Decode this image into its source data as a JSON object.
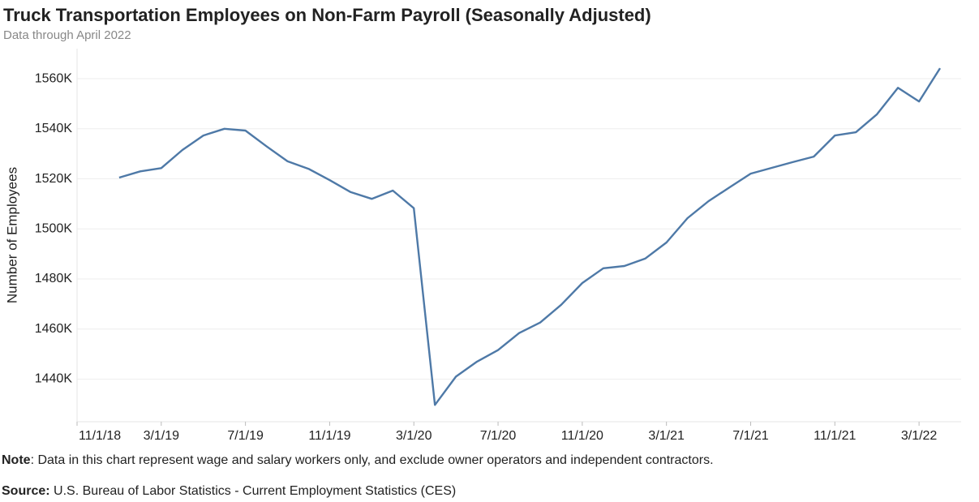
{
  "chart_data": {
    "type": "line",
    "title": "Truck Transportation Employees on Non-Farm Payroll (Seasonally Adjusted)",
    "subtitle": "Data through April 2022",
    "y_label": "Number of Employees",
    "x": [
      "1/1/19",
      "2/1/19",
      "3/1/19",
      "4/1/19",
      "5/1/19",
      "6/1/19",
      "7/1/19",
      "8/1/19",
      "9/1/19",
      "10/1/19",
      "11/1/19",
      "12/1/19",
      "1/1/20",
      "2/1/20",
      "3/1/20",
      "4/1/20",
      "5/1/20",
      "6/1/20",
      "7/1/20",
      "8/1/20",
      "9/1/20",
      "10/1/20",
      "11/1/20",
      "12/1/20",
      "1/1/21",
      "2/1/21",
      "3/1/21",
      "4/1/21",
      "5/1/21",
      "6/1/21",
      "7/1/21",
      "8/1/21",
      "9/1/21",
      "10/1/21",
      "11/1/21",
      "12/1/21",
      "1/1/22",
      "2/1/22",
      "3/1/22",
      "4/1/22"
    ],
    "series": [
      {
        "color": "#4e79a7",
        "values": [
          1520.5,
          1523,
          1524.3,
          1531.5,
          1537.3,
          1540,
          1539.3,
          1533,
          1527,
          1524,
          1519.5,
          1514.7,
          1512,
          1515.3,
          1508.3,
          1429.7,
          1441,
          1447,
          1451.6,
          1458.4,
          1462.6,
          1469.7,
          1478.4,
          1484.3,
          1485.2,
          1488.2,
          1494.6,
          1504.3,
          1511.1,
          1516.6,
          1522.1,
          1524.4,
          1526.7,
          1528.9,
          1537.3,
          1538.6,
          1545.8,
          1556.4,
          1550.9,
          1564.2
        ]
      }
    ],
    "xlim": [
      "11/1/18",
      "5/1/22"
    ],
    "xticks": [
      "11/1/18",
      "3/1/19",
      "7/1/19",
      "11/1/19",
      "3/1/20",
      "7/1/20",
      "11/1/20",
      "3/1/21",
      "7/1/21",
      "11/1/21",
      "3/1/22"
    ],
    "ylim": [
      1423,
      1572
    ],
    "yticks": [
      {
        "value": 1440,
        "label": "1440K"
      },
      {
        "value": 1460,
        "label": "1460K"
      },
      {
        "value": 1480,
        "label": "1480K"
      },
      {
        "value": 1500,
        "label": "1500K"
      },
      {
        "value": 1520,
        "label": "1520K"
      },
      {
        "value": 1540,
        "label": "1540K"
      },
      {
        "value": 1560,
        "label": "1560K"
      }
    ],
    "grid": true
  },
  "footnotes": {
    "note_label": "Note",
    "note_text": ": Data in this chart represent wage and salary workers only, and exclude owner operators and independent contractors.",
    "source_label": "Source:",
    "source_text": " U.S. Bureau of Labor Statistics - Current Employment Statistics (CES)"
  }
}
